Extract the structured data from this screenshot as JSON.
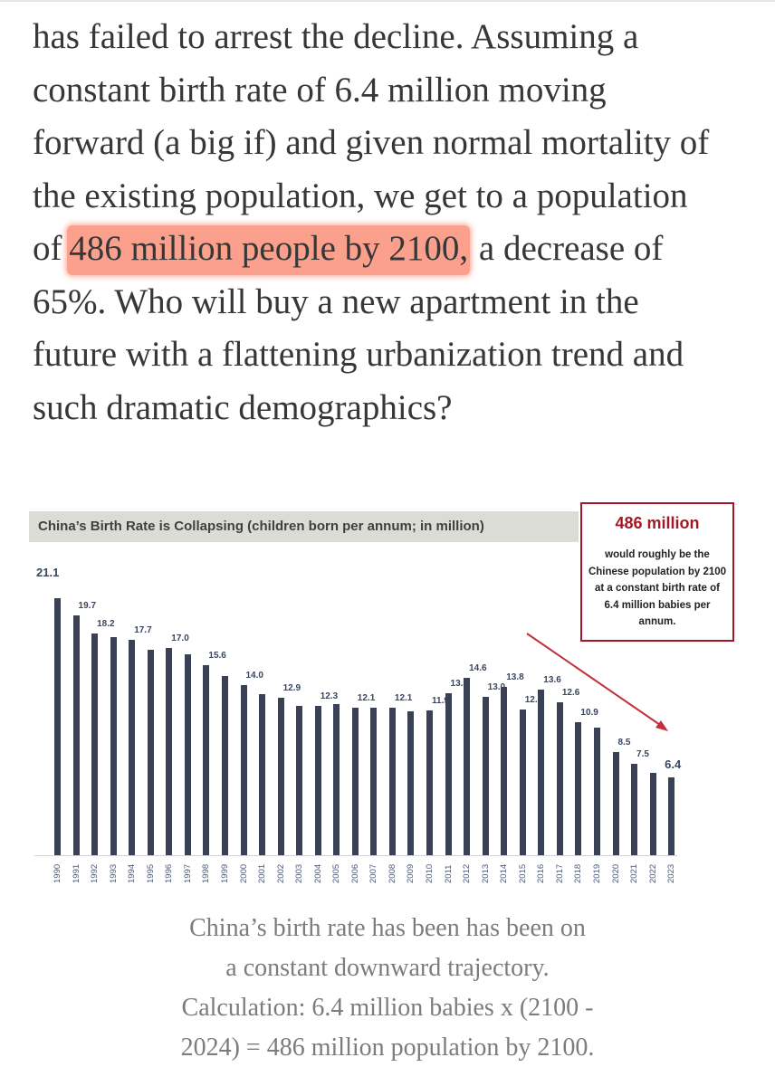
{
  "article": {
    "lines": [
      "has failed to arrest the decline. Assuming a",
      "constant birth rate of 6.4 million moving",
      "forward (a big if) and given normal mortality of",
      "the existing population, we get to a population"
    ],
    "line5_pre": "of ",
    "line5_highlight": "486 million people by 2100,",
    "line5_post": " a decrease of",
    "lines_after": [
      "65%. Who will buy a new apartment in the",
      "future with a flattening urbanization trend and",
      "such dramatic demographics?"
    ],
    "highlight_color": "#fba08c"
  },
  "callout": {
    "headline": "486 million",
    "body": "would roughly be the Chinese population by 2100 at a constant birth rate of 6.4 million babies per annum.",
    "border_color": "#a31824"
  },
  "caption": {
    "lines": [
      "China’s birth rate has been has been on",
      "a constant downward trajectory.",
      "Calculation: 6.4 million babies x (2100 -",
      "2024) = 486 million population by 2100."
    ]
  },
  "chart_data": {
    "type": "bar",
    "title": "China’s Birth Rate is Collapsing (children born per annum; in million)",
    "xlabel": "",
    "ylabel": "",
    "ylim": [
      0,
      22
    ],
    "grid": false,
    "bar_color": "#3a4154",
    "categories": [
      "1990",
      "1991",
      "1992",
      "1993",
      "1994",
      "1995",
      "1996",
      "1997",
      "1998",
      "1999",
      "2000",
      "2001",
      "2002",
      "2003",
      "2004",
      "2005",
      "2006",
      "2007",
      "2008",
      "2009",
      "2010",
      "2011",
      "2012",
      "2013",
      "2014",
      "2015",
      "2016",
      "2017",
      "2018",
      "2019",
      "2020",
      "2021",
      "2022",
      "2023"
    ],
    "values": [
      21.1,
      19.7,
      18.2,
      17.9,
      17.7,
      16.9,
      17.0,
      16.5,
      15.6,
      14.7,
      14.0,
      13.2,
      12.9,
      12.3,
      12.3,
      12.4,
      12.1,
      12.1,
      12.1,
      11.8,
      11.9,
      13.3,
      14.6,
      13.0,
      13.8,
      12.0,
      13.6,
      12.6,
      10.9,
      10.5,
      8.5,
      7.5,
      6.8,
      6.4
    ],
    "data_labels": {
      "1990": "21.1",
      "1991": "19.7",
      "1992": "18.2",
      "1994": "17.7",
      "1996": "17.0",
      "1998": "15.6",
      "2000": "14.0",
      "2002": "12.9",
      "2004": "12.3",
      "2006": "12.1",
      "2008": "12.1",
      "2010": "11.9",
      "2011": "13.3",
      "2012": "14.6",
      "2013": "13.0",
      "2014": "13.8",
      "2015": "12.0",
      "2016": "13.6",
      "2017": "12.6",
      "2018": "10.9",
      "2020": "8.5",
      "2021": "7.5",
      "2023": "6.4"
    },
    "annotations": [
      {
        "type": "arrow",
        "from": "callout",
        "to": "2023",
        "color": "#c0313b"
      },
      {
        "type": "callout",
        "text": "486 million — would roughly be the Chinese population by 2100 at a constant birth rate of 6.4 million babies per annum."
      }
    ]
  }
}
